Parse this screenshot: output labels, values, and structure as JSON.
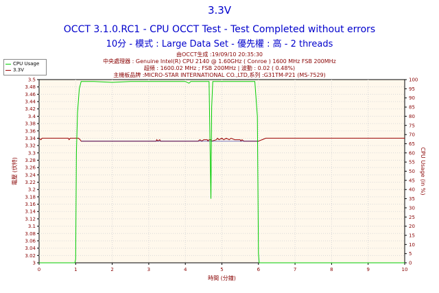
{
  "header": {
    "title": "3.3V",
    "line2": "OCCT 3.1.0.RC1 - CPU OCCT Test - Test Completed without errors",
    "line3": "10分 - 模式 : Large Data Set - 優先權 : 高 - 2 threads"
  },
  "info": {
    "generated": "由OCCT生成 :19/09/10 20:35:30",
    "cpu": "中央處理器 : Genuine Intel(R) CPU 2140 @ 1.60GHz ( Conroe ) 1600 MHz FSB 200MHz",
    "oc": "超頻 : 1600.02 MHz ; FSB 200MHz | 波動 : 0.02 ( 0.48%)",
    "board": "主機板品牌 :MICRO-STAR INTERNATIONAL CO.,LTD,系列 :G31TM-P21 (MS-7529)"
  },
  "legend": [
    {
      "label": "CPU Usage",
      "color": "#00cc00"
    },
    {
      "label": "3.3V",
      "color": "#990000"
    }
  ],
  "colors": {
    "plot_bg": "#fff8ec",
    "grid": "#d8d8d8",
    "cpu": "#00cc00",
    "volt": "#990000",
    "volt_flat": "#1a1aa0",
    "axis_text": "#880000"
  },
  "chart_data": {
    "type": "line",
    "xlabel": "時間 (分鐘)",
    "ylabel_left": "電壓 (伏特)",
    "ylabel_right": "CPU Usage (in %)",
    "xlim": [
      0,
      10
    ],
    "ylim_left": [
      3.0,
      3.5
    ],
    "ylim_right": [
      0,
      100
    ],
    "x_ticks": [
      "0",
      "1",
      "2",
      "3",
      "4",
      "5",
      "6",
      "7",
      "8",
      "9",
      "10"
    ],
    "y_ticks_left": [
      "3",
      "3.02",
      "3.04",
      "3.06",
      "3.08",
      "3.1",
      "3.12",
      "3.14",
      "3.16",
      "3.18",
      "3.2",
      "3.22",
      "3.24",
      "3.26",
      "3.28",
      "3.3",
      "3.32",
      "3.34",
      "3.36",
      "3.38",
      "3.4",
      "3.42",
      "3.44",
      "3.46",
      "3.48",
      "3.5"
    ],
    "y_ticks_right": [
      "0",
      "5",
      "10",
      "15",
      "20",
      "25",
      "30",
      "35",
      "40",
      "45",
      "50",
      "55",
      "60",
      "65",
      "70",
      "75",
      "80",
      "85",
      "90",
      "95",
      "100"
    ],
    "series": [
      {
        "name": "CPU Usage",
        "axis": "right",
        "x": [
          0,
          0.98,
          1.0,
          1.02,
          1.05,
          1.1,
          1.15,
          1.2,
          1.5,
          2.0,
          2.5,
          3.0,
          3.5,
          4.0,
          4.1,
          4.15,
          4.5,
          4.65,
          4.68,
          4.7,
          4.72,
          4.75,
          4.78,
          4.82,
          5.0,
          5.5,
          5.9,
          5.97,
          6.0,
          6.02,
          6.1,
          7,
          8,
          9,
          10
        ],
        "y": [
          0,
          0,
          2,
          60,
          82,
          95,
          99,
          99,
          99,
          98.5,
          99,
          99,
          99,
          99,
          98,
          99,
          99,
          99,
          60,
          35,
          85,
          99,
          99,
          99,
          99,
          99,
          99,
          80,
          5,
          0,
          0,
          0,
          0,
          0,
          0
        ]
      },
      {
        "name": "3.3V",
        "axis": "left",
        "x": [
          0,
          0.05,
          0.08,
          0.5,
          0.8,
          0.82,
          0.85,
          1.08,
          1.12,
          1.15,
          3.2,
          3.22,
          3.25,
          3.3,
          3.32,
          4.35,
          4.4,
          4.45,
          4.5,
          4.6,
          4.62,
          4.65,
          4.7,
          4.72,
          4.85,
          4.88,
          4.92,
          5.0,
          5.05,
          5.12,
          5.2,
          5.25,
          5.35,
          5.5,
          5.52,
          5.55,
          5.6,
          6.0,
          6.1,
          6.2,
          6.25,
          7,
          8,
          9,
          10
        ],
        "y": [
          3.34,
          3.336,
          3.34,
          3.34,
          3.34,
          3.336,
          3.34,
          3.34,
          3.336,
          3.332,
          3.332,
          3.336,
          3.332,
          3.336,
          3.332,
          3.332,
          3.336,
          3.332,
          3.336,
          3.336,
          3.332,
          3.336,
          3.336,
          3.332,
          3.336,
          3.34,
          3.336,
          3.34,
          3.336,
          3.34,
          3.336,
          3.34,
          3.336,
          3.336,
          3.332,
          3.336,
          3.332,
          3.332,
          3.336,
          3.34,
          3.34,
          3.34,
          3.34,
          3.34,
          3.34
        ]
      }
    ],
    "grid": true,
    "legend_position": "top-left"
  }
}
